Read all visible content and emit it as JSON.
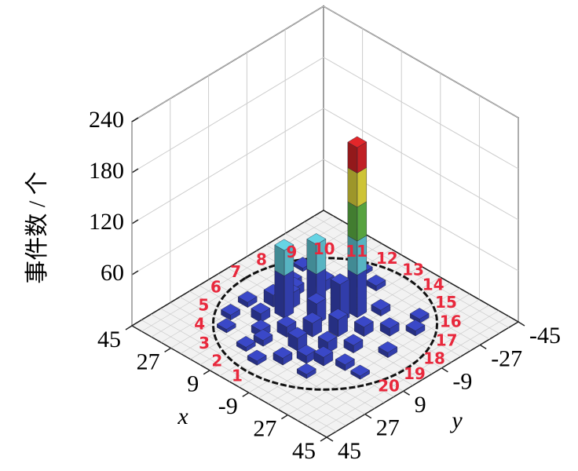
{
  "chart_data": {
    "type": "bar3d",
    "zlabel": "事件数 / 个",
    "xlabel": "x",
    "ylabel": "y",
    "xlim": [
      -45,
      45
    ],
    "ylim": [
      -45,
      45
    ],
    "zlim": [
      0,
      240
    ],
    "xticks": [
      45,
      27,
      9,
      -9,
      {
        "value": -27,
        "label": "27"
      },
      {
        "value": -45,
        "label": "45"
      }
    ],
    "yticks": [
      -45,
      -27,
      -9,
      9,
      27,
      45
    ],
    "zticks": [
      60,
      120,
      180,
      240
    ],
    "grid": true,
    "ring_labels": [
      "1",
      "2",
      "3",
      "4",
      "5",
      "6",
      "7",
      "8",
      "9",
      "10",
      "11",
      "12",
      "13",
      "14",
      "15",
      "16",
      "17",
      "18",
      "19",
      "20"
    ],
    "color_bounds": [
      0,
      50,
      90,
      130,
      170
    ],
    "colors": [
      "#3a48c8",
      "#66d4e4",
      "#66c04a",
      "#f2e640",
      "#e2262a"
    ],
    "x": [
      -3,
      7,
      14,
      -1,
      21,
      18,
      12,
      6,
      0,
      -6,
      -12,
      -18,
      -24,
      24,
      15,
      9,
      3,
      -9,
      -15,
      -21,
      27,
      20,
      10,
      -4,
      -10,
      -16,
      -26,
      16,
      4,
      -8,
      2,
      28,
      -20,
      12,
      26,
      -28,
      8,
      -14,
      22,
      -2
    ],
    "y": [
      -12,
      -3,
      5,
      -6,
      3,
      12,
      18,
      12,
      6,
      0,
      -6,
      -12,
      -18,
      -9,
      -15,
      -21,
      -27,
      18,
      24,
      12,
      9,
      -6,
      27,
      24,
      9,
      3,
      -3,
      0,
      0,
      -18,
      30,
      -18,
      -24,
      -30,
      18,
      12,
      21,
      15,
      24,
      15
    ],
    "values": [
      200,
      85,
      80,
      45,
      14,
      10,
      8,
      12,
      16,
      20,
      11,
      9,
      6,
      7,
      12,
      5,
      6,
      9,
      5,
      7,
      6,
      10,
      5,
      8,
      13,
      9,
      6,
      18,
      24,
      7,
      5,
      4,
      5,
      4,
      6,
      4,
      7,
      10,
      4,
      15
    ]
  }
}
